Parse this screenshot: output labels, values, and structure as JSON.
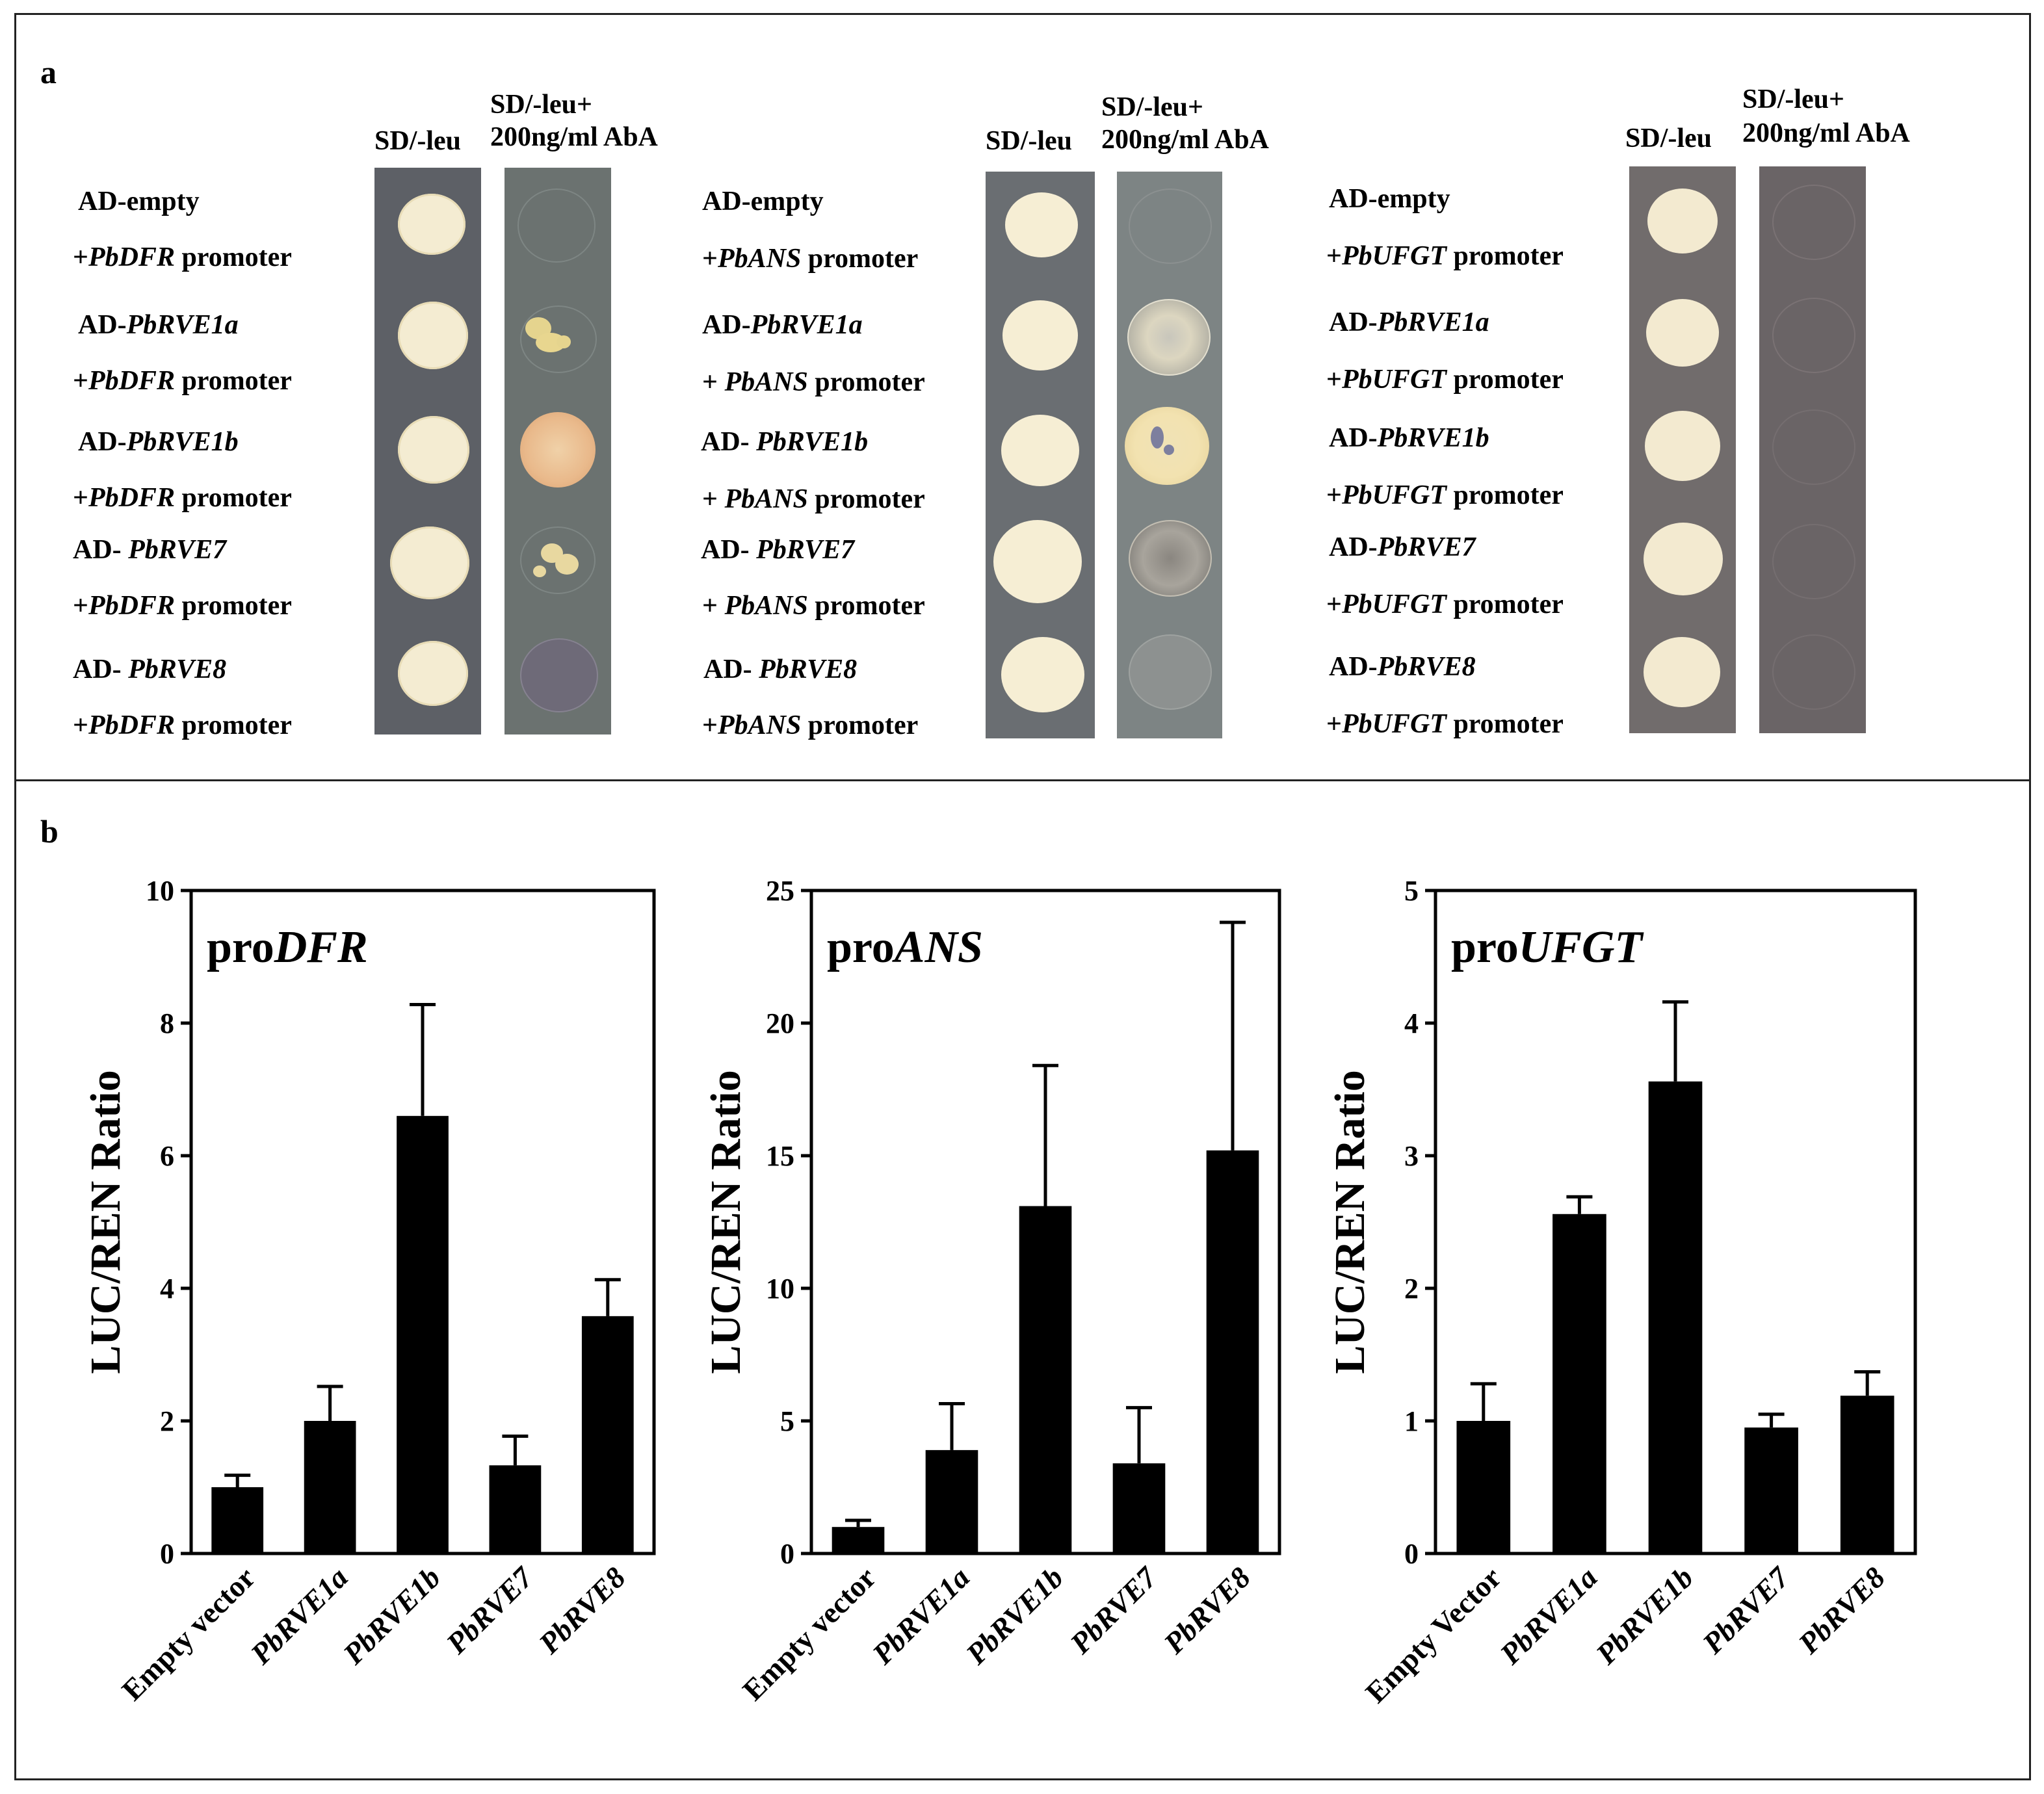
{
  "panel_a": {
    "letter": "a",
    "groups": [
      {
        "col_headers": {
          "sd": "SD/-leu",
          "aba_line1": "SD/-leu+",
          "aba_line2": "200ng/ml AbA"
        },
        "rows": [
          {
            "line1": "AD-empty",
            "line2_prefix": "+",
            "gene": "PbDFR",
            "line2_suffix": " promoter",
            "line1_gene": ""
          },
          {
            "line1": "AD-",
            "line1_gene": "PbRVE1a",
            "line2_prefix": "+",
            "gene": "PbDFR",
            "line2_suffix": " promoter"
          },
          {
            "line1": "AD-",
            "line1_gene": "PbRVE1b",
            "line2_prefix": "+",
            "gene": "PbDFR",
            "line2_suffix": " promoter"
          },
          {
            "line1": "AD- ",
            "line1_gene": "PbRVE7",
            "line2_prefix": "+",
            "gene": "PbDFR",
            "line2_suffix": " promoter"
          },
          {
            "line1": "AD- ",
            "line1_gene": "PbRVE8",
            "line2_prefix": "+",
            "gene": "PbDFR",
            "line2_suffix": " promoter"
          }
        ]
      },
      {
        "col_headers": {
          "sd": "SD/-leu",
          "aba_line1": "SD/-leu+",
          "aba_line2": "200ng/ml AbA"
        },
        "rows": [
          {
            "line1": "AD-empty",
            "line1_gene": "",
            "line2_prefix": "+",
            "gene": "PbANS",
            "line2_suffix": " promoter"
          },
          {
            "line1": "AD-",
            "line1_gene": "PbRVE1a",
            "line2_prefix": "+ ",
            "gene": "PbANS",
            "line2_suffix": " promoter"
          },
          {
            "line1": "AD- ",
            "line1_gene": "PbRVE1b",
            "line2_prefix": "+ ",
            "gene": "PbANS",
            "line2_suffix": " promoter"
          },
          {
            "line1": "AD- ",
            "line1_gene": "PbRVE7",
            "line2_prefix": "+ ",
            "gene": "PbANS",
            "line2_suffix": " promoter"
          },
          {
            "line1": "AD- ",
            "line1_gene": "PbRVE8",
            "line2_prefix": "+",
            "gene": "PbANS",
            "line2_suffix": " promoter"
          }
        ]
      },
      {
        "col_headers": {
          "sd": "SD/-leu",
          "aba_line1": "SD/-leu+",
          "aba_line2": "200ng/ml AbA"
        },
        "rows": [
          {
            "line1": "AD-empty",
            "line1_gene": "",
            "line2_prefix": "+",
            "gene": "PbUFGT",
            "line2_suffix": " promoter"
          },
          {
            "line1": "AD-",
            "line1_gene": "PbRVE1a",
            "line2_prefix": "+",
            "gene": "PbUFGT",
            "line2_suffix": " promoter"
          },
          {
            "line1": "AD-",
            "line1_gene": "PbRVE1b",
            "line2_prefix": "+",
            "gene": "PbUFGT",
            "line2_suffix": " promoter"
          },
          {
            "line1": "AD-",
            "line1_gene": "PbRVE7",
            "line2_prefix": "+",
            "gene": "PbUFGT",
            "line2_suffix": " promoter"
          },
          {
            "line1": "AD-",
            "line1_gene": "PbRVE8",
            "line2_prefix": "+",
            "gene": "PbUFGT",
            "line2_suffix": " promoter"
          }
        ]
      }
    ]
  },
  "panel_b": {
    "letter": "b"
  },
  "chart_data": [
    {
      "type": "bar",
      "title_prefix": "pro",
      "title_gene": "DFR",
      "ylabel": "LUC/REN Ratio",
      "ylim": [
        0,
        10
      ],
      "yticks": [
        0,
        2,
        4,
        6,
        8,
        10
      ],
      "categories": [
        "Empty vector",
        "PbRVE1a",
        "PbRVE1b",
        "PbRVE7",
        "PbRVE8"
      ],
      "italic_categories": [
        false,
        true,
        true,
        true,
        true
      ],
      "values": [
        1.0,
        2.0,
        6.6,
        1.33,
        3.58
      ],
      "errors": [
        0.18,
        0.52,
        1.68,
        0.44,
        0.55
      ]
    },
    {
      "type": "bar",
      "title_prefix": "pro",
      "title_gene": "ANS",
      "ylabel": "LUC/REN Ratio",
      "ylim": [
        0,
        25
      ],
      "yticks": [
        0,
        5,
        10,
        15,
        20,
        25
      ],
      "categories": [
        "Empty vector",
        "PbRVE1a",
        "PbRVE1b",
        "PbRVE7",
        "PbRVE8"
      ],
      "italic_categories": [
        false,
        true,
        true,
        true,
        true
      ],
      "values": [
        1.0,
        3.9,
        13.1,
        3.4,
        15.2
      ],
      "errors": [
        0.25,
        1.75,
        5.3,
        2.1,
        8.6
      ]
    },
    {
      "type": "bar",
      "title_prefix": "pro",
      "title_gene": "UFGT",
      "ylabel": "LUC/REN Ratio",
      "ylim": [
        0,
        5
      ],
      "yticks": [
        0,
        1,
        2,
        3,
        4,
        5
      ],
      "categories": [
        "Empty Vector",
        "PbRVE1a",
        "PbRVE1b",
        "PbRVE7",
        "PbRVE8"
      ],
      "italic_categories": [
        false,
        true,
        true,
        true,
        true
      ],
      "values": [
        1.0,
        2.56,
        3.56,
        0.95,
        1.19
      ],
      "errors": [
        0.28,
        0.13,
        0.6,
        0.1,
        0.18
      ]
    }
  ],
  "colors": {
    "bar": "#000000",
    "frame": "#222222",
    "colony": "#f3ecd3",
    "colony_edge": "#e3d8b3"
  }
}
